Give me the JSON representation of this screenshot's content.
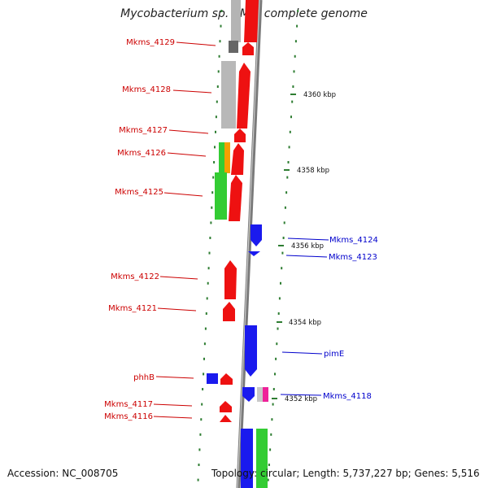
{
  "title": "Mycobacterium sp. KMS, complete genome",
  "footer": {
    "accession": "Accession: NC_008705",
    "summary": "Topology: circular; Length: 5,737,227 bp; Genes: 5,516"
  },
  "colors": {
    "forward_label": "#cc0000",
    "reverse_label": "#0000cc",
    "backbone": "#808080",
    "tick": "#2e7d32"
  },
  "scale_labels": [
    "4360 kbp",
    "4358 kbp",
    "4356 kbp",
    "4354 kbp",
    "4352 kbp"
  ],
  "left_genes": [
    "Mkms_4129",
    "Mkms_4128",
    "Mkms_4127",
    "Mkms_4126",
    "Mkms_4125",
    "Mkms_4122",
    "Mkms_4121",
    "phhB",
    "Mkms_4117",
    "Mkms_4116"
  ],
  "right_genes": [
    "Mkms_4124",
    "Mkms_4123",
    "pimE",
    "Mkms_4118"
  ]
}
